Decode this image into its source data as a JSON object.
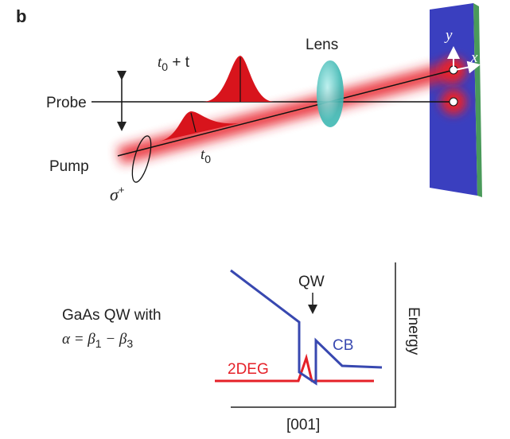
{
  "panel": "b",
  "setup": {
    "probe": "Probe",
    "pump": "Pump",
    "lens": "Lens",
    "probe_delay": {
      "symbol": "t",
      "subscript": "0",
      "suffix": " + t"
    },
    "pump_time": {
      "symbol": "t",
      "subscript": "0"
    },
    "polarization": {
      "symbol": "σ",
      "superscript": "+"
    },
    "axis_y": "y",
    "axis_x": "x"
  },
  "band_diagram": {
    "qw": "QW",
    "caption_line1": "GaAs QW with",
    "caption_line2": {
      "alpha": "α = β",
      "sub1": "1",
      "minus": " − β",
      "sub2": "3"
    },
    "cb": "CB",
    "twodeg": "2DEG",
    "y_axis": "Energy",
    "x_axis": "[001]"
  }
}
